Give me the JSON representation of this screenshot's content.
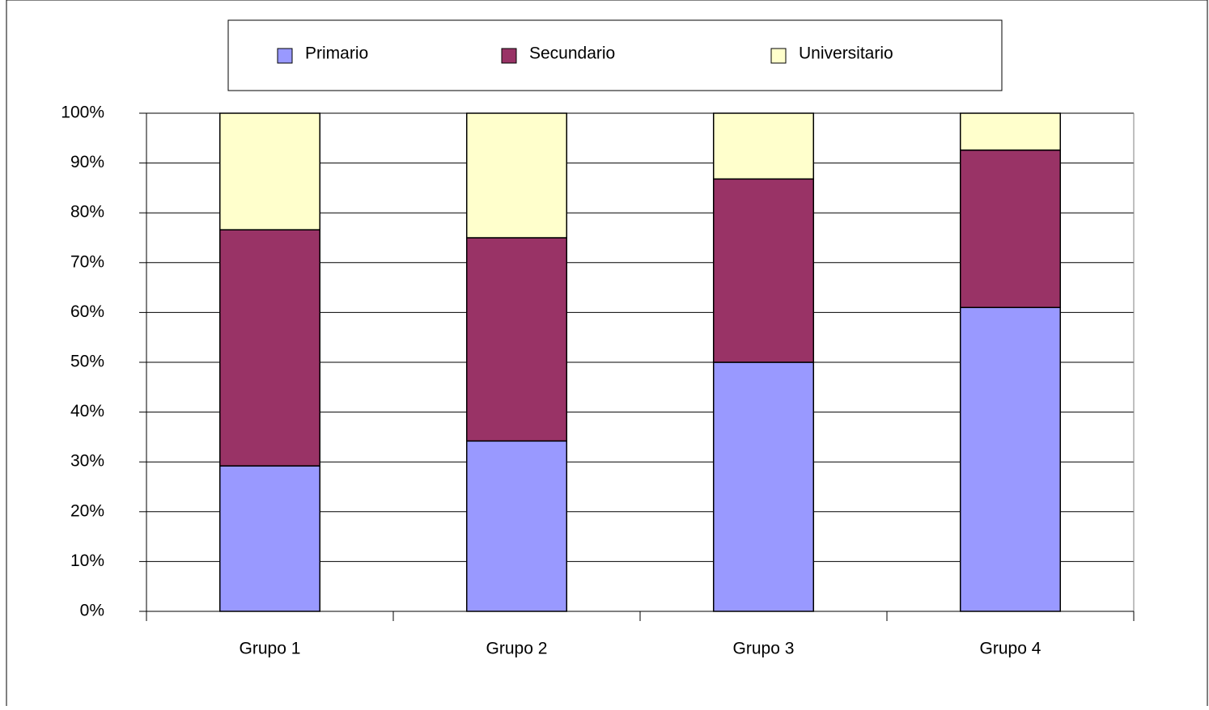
{
  "chart_data": {
    "type": "bar",
    "stacked": true,
    "normalized_percent": true,
    "categories": [
      "Grupo 1",
      "Grupo 2",
      "Grupo 3",
      "Grupo 4"
    ],
    "series": [
      {
        "name": "Primario",
        "values": [
          29.2,
          34.2,
          50.0,
          61.0
        ],
        "color": "#9999ff"
      },
      {
        "name": "Secundario",
        "values": [
          47.4,
          40.8,
          36.8,
          31.6
        ],
        "color": "#993366"
      },
      {
        "name": "Universitario",
        "values": [
          23.4,
          25.0,
          13.2,
          7.4
        ],
        "color": "#ffffcc"
      }
    ],
    "y_ticks": [
      "0%",
      "10%",
      "20%",
      "30%",
      "40%",
      "50%",
      "60%",
      "70%",
      "80%",
      "90%",
      "100%"
    ],
    "ylim": [
      0,
      100
    ],
    "grid": true,
    "legend_position": "top",
    "title": "",
    "xlabel": "",
    "ylabel": ""
  }
}
